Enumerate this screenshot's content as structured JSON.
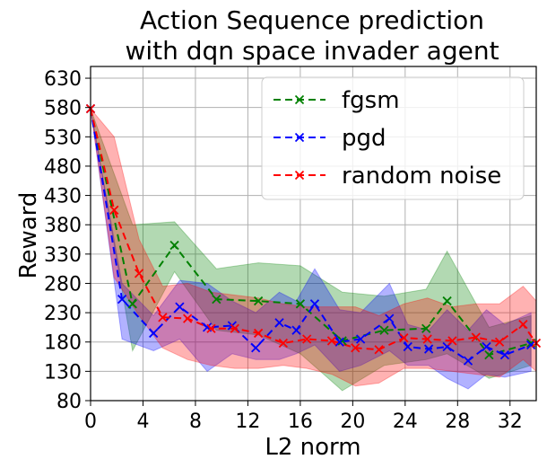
{
  "chart_data": {
    "type": "line",
    "title": [
      "Action Sequence prediction",
      "with dqn space invader agent"
    ],
    "xlabel": "L2 norm",
    "ylabel": "Reward",
    "xlim": [
      0,
      34
    ],
    "ylim": [
      80,
      650
    ],
    "x_ticks": [
      0,
      4,
      8,
      12,
      16,
      20,
      24,
      28,
      32
    ],
    "y_ticks": [
      80,
      130,
      180,
      230,
      280,
      330,
      380,
      430,
      480,
      530,
      580,
      630
    ],
    "grid": true,
    "legend_position": "top-right",
    "series": [
      {
        "name": "fgsm",
        "color": "#008000",
        "fill": "#008000",
        "x": [
          0,
          3.2,
          6.4,
          9.6,
          12.8,
          16,
          19.2,
          22.4,
          25.6,
          27.2,
          30.4,
          33.6
        ],
        "y": [
          578,
          245,
          345,
          253,
          250,
          245,
          182,
          200,
          203,
          250,
          158,
          178
        ],
        "lower": [
          578,
          165,
          300,
          200,
          192,
          160,
          97,
          140,
          150,
          160,
          118,
          140
        ],
        "upper": [
          578,
          380,
          385,
          305,
          315,
          310,
          265,
          258,
          270,
          335,
          205,
          225
        ]
      },
      {
        "name": "pgd",
        "color": "#0000ff",
        "fill": "#0000ff",
        "x": [
          0,
          2.4,
          4.8,
          6.8,
          8.9,
          10.8,
          12.6,
          14.4,
          15.7,
          17.1,
          19,
          20.6,
          22.8,
          24.2,
          25.8,
          27.2,
          28.8,
          30.2,
          31.6,
          33.6
        ],
        "y": [
          578,
          253,
          195,
          240,
          205,
          208,
          170,
          213,
          200,
          245,
          180,
          185,
          220,
          172,
          168,
          172,
          148,
          172,
          158,
          175
        ],
        "lower": [
          578,
          185,
          165,
          185,
          130,
          160,
          150,
          150,
          160,
          175,
          130,
          140,
          165,
          140,
          140,
          118,
          100,
          125,
          120,
          130
        ],
        "upper": [
          578,
          280,
          225,
          285,
          280,
          250,
          230,
          265,
          250,
          305,
          235,
          230,
          280,
          210,
          200,
          235,
          200,
          235,
          210,
          230
        ]
      },
      {
        "name": "random noise",
        "color": "#ff0000",
        "fill": "#ff0000",
        "x": [
          0,
          1.8,
          3.7,
          5.5,
          7.4,
          9.2,
          11,
          12.8,
          14.7,
          16.5,
          18.4,
          20.2,
          22,
          23.9,
          25.7,
          27.6,
          29.4,
          31.2,
          33,
          34
        ],
        "y": [
          578,
          405,
          297,
          222,
          220,
          203,
          203,
          195,
          178,
          185,
          182,
          170,
          167,
          187,
          185,
          182,
          188,
          180,
          210,
          178
        ],
        "lower": [
          578,
          290,
          225,
          170,
          150,
          140,
          135,
          135,
          140,
          135,
          125,
          105,
          110,
          135,
          135,
          130,
          125,
          120,
          150,
          130
        ],
        "upper": [
          578,
          530,
          355,
          275,
          280,
          265,
          260,
          255,
          245,
          240,
          240,
          240,
          225,
          245,
          255,
          240,
          245,
          245,
          275,
          250
        ]
      }
    ]
  }
}
